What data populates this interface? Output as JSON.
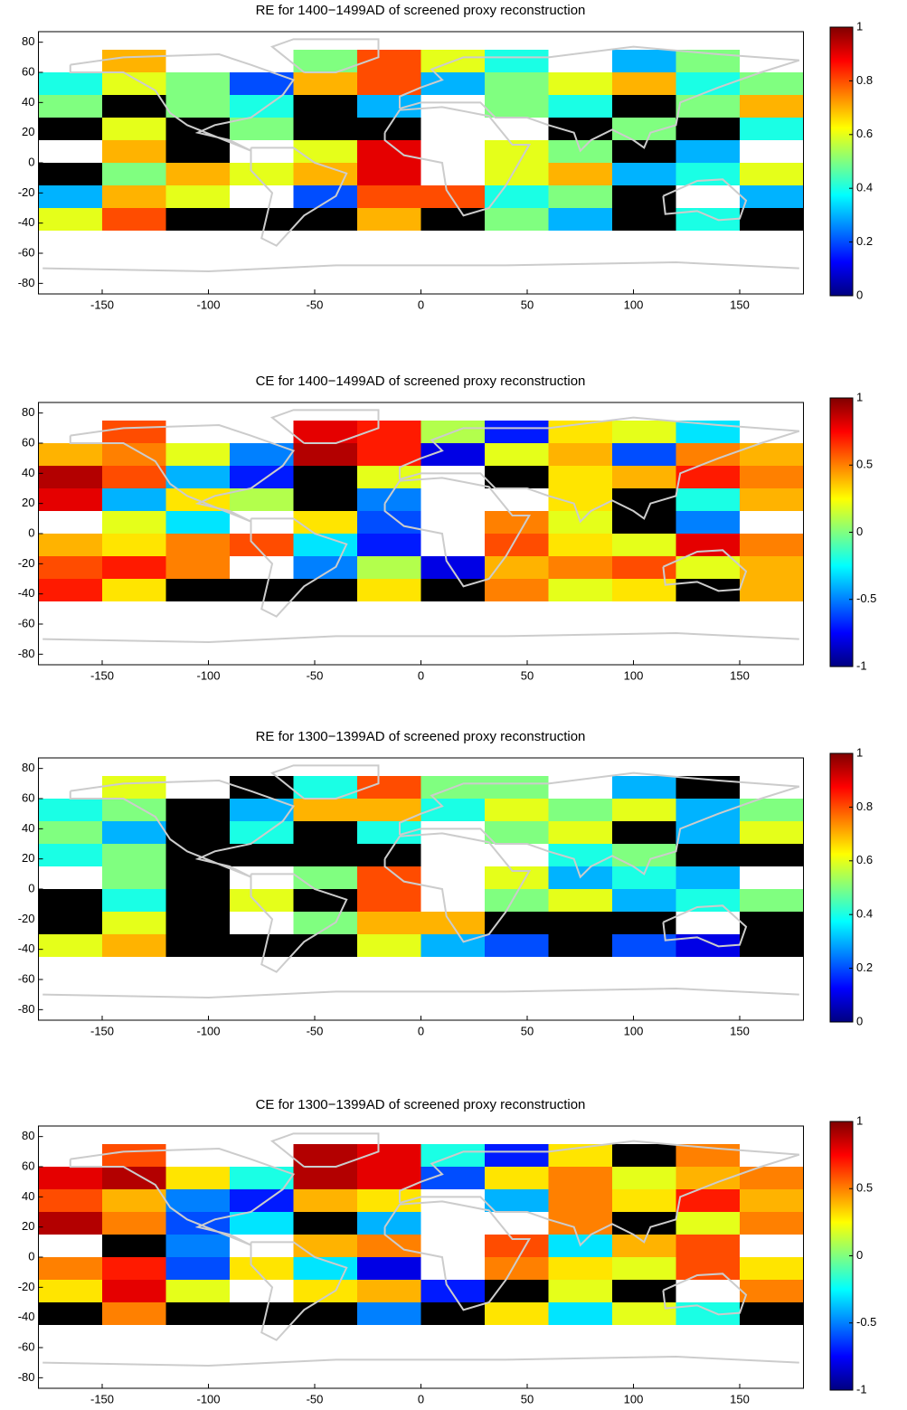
{
  "chart_data": [
    {
      "type": "heatmap",
      "title": "RE for 1400−1499AD of screened proxy reconstruction",
      "x": [
        -165,
        -135,
        -105,
        -75,
        -45,
        -15,
        15,
        45,
        75,
        105,
        135,
        165
      ],
      "y": [
        67.5,
        52.5,
        37.5,
        22.5,
        7.5,
        -7.5,
        -22.5,
        -37.5
      ],
      "values": [
        [
          null,
          0.7,
          null,
          null,
          0.5,
          0.8,
          0.6,
          0.4,
          null,
          0.3,
          0.5,
          null
        ],
        [
          0.4,
          0.6,
          0.5,
          0.2,
          0.7,
          0.8,
          0.3,
          0.5,
          0.6,
          0.7,
          0.4,
          0.5
        ],
        [
          0.5,
          -0.3,
          0.5,
          0.4,
          -0.3,
          0.3,
          null,
          0.5,
          0.4,
          -0.3,
          0.5,
          0.7
        ],
        [
          -0.3,
          0.6,
          -0.3,
          0.5,
          -0.3,
          -0.3,
          null,
          null,
          -0.3,
          0.5,
          -0.3,
          0.4
        ],
        [
          null,
          0.7,
          -0.3,
          null,
          0.6,
          0.9,
          null,
          0.6,
          0.5,
          -0.3,
          0.3,
          null
        ],
        [
          -0.3,
          0.5,
          0.7,
          0.6,
          0.7,
          0.9,
          null,
          0.6,
          0.7,
          0.3,
          0.4,
          0.6
        ],
        [
          0.3,
          0.7,
          0.6,
          null,
          0.2,
          0.8,
          0.8,
          0.4,
          0.5,
          -0.3,
          null,
          0.3
        ],
        [
          0.6,
          0.8,
          -0.3,
          -0.3,
          -0.3,
          0.7,
          -0.3,
          0.5,
          0.3,
          -0.3,
          0.4,
          -0.3
        ]
      ],
      "xlim": [
        -180,
        180
      ],
      "ylim": [
        -87,
        87
      ],
      "xticks": [
        -150,
        -100,
        -50,
        0,
        50,
        100,
        150
      ],
      "yticks": [
        -80,
        -60,
        -40,
        -20,
        0,
        20,
        40,
        60,
        80
      ],
      "clim": [
        0,
        1
      ],
      "cticks": [
        0,
        0.2,
        0.4,
        0.6,
        0.8,
        1
      ],
      "colormap": "jet",
      "under_color": "#000000"
    },
    {
      "type": "heatmap",
      "title": "CE for 1400−1499AD of screened proxy reconstruction",
      "x": [
        -165,
        -135,
        -105,
        -75,
        -45,
        -15,
        15,
        45,
        75,
        105,
        135,
        165
      ],
      "y": [
        67.5,
        52.5,
        37.5,
        22.5,
        7.5,
        -7.5,
        -22.5,
        -37.5
      ],
      "values": [
        [
          null,
          0.6,
          null,
          null,
          0.8,
          0.7,
          0.1,
          -0.7,
          0.3,
          0.2,
          -0.3,
          null
        ],
        [
          0.4,
          0.5,
          0.2,
          -0.5,
          0.9,
          0.7,
          -0.8,
          0.2,
          0.4,
          -0.6,
          0.5,
          0.4
        ],
        [
          0.9,
          0.6,
          -0.4,
          -0.7,
          -1.5,
          0.2,
          null,
          -1.5,
          0.3,
          0.4,
          0.7,
          0.5
        ],
        [
          0.8,
          -0.4,
          0.3,
          0.1,
          -1.5,
          -0.5,
          null,
          null,
          0.3,
          -1.5,
          -0.2,
          0.4
        ],
        [
          null,
          0.2,
          -0.3,
          null,
          0.3,
          -0.6,
          null,
          0.5,
          0.2,
          -1.5,
          -0.5,
          null
        ],
        [
          0.4,
          0.3,
          0.5,
          0.6,
          -0.3,
          -0.7,
          null,
          0.6,
          0.3,
          0.2,
          0.8,
          0.5
        ],
        [
          0.6,
          0.7,
          0.5,
          null,
          -0.5,
          0.1,
          -0.8,
          0.4,
          0.5,
          0.6,
          0.2,
          0.4
        ],
        [
          0.7,
          0.3,
          -1.5,
          -1.5,
          -1.5,
          0.3,
          -1.5,
          0.5,
          0.2,
          0.3,
          -1.5,
          0.4
        ]
      ],
      "xlim": [
        -180,
        180
      ],
      "ylim": [
        -87,
        87
      ],
      "xticks": [
        -150,
        -100,
        -50,
        0,
        50,
        100,
        150
      ],
      "yticks": [
        -80,
        -60,
        -40,
        -20,
        0,
        20,
        40,
        60,
        80
      ],
      "clim": [
        -1,
        1
      ],
      "cticks": [
        -1,
        -0.5,
        0,
        0.5,
        1
      ],
      "colormap": "jet",
      "under_color": "#000000"
    },
    {
      "type": "heatmap",
      "title": "RE for 1300−1399AD of screened proxy reconstruction",
      "x": [
        -165,
        -135,
        -105,
        -75,
        -45,
        -15,
        15,
        45,
        75,
        105,
        135,
        165
      ],
      "y": [
        67.5,
        52.5,
        37.5,
        22.5,
        7.5,
        -7.5,
        -22.5,
        -37.5
      ],
      "values": [
        [
          null,
          0.6,
          null,
          -0.3,
          0.4,
          0.8,
          0.5,
          0.5,
          null,
          0.3,
          -0.3,
          null
        ],
        [
          0.4,
          0.5,
          -0.3,
          0.3,
          0.7,
          0.7,
          0.4,
          0.6,
          0.5,
          0.6,
          0.3,
          0.5
        ],
        [
          0.5,
          0.3,
          -0.3,
          0.4,
          -0.3,
          0.4,
          null,
          0.5,
          0.6,
          -0.3,
          0.3,
          0.6
        ],
        [
          0.4,
          0.5,
          -0.3,
          -0.3,
          -0.3,
          -0.3,
          null,
          null,
          0.4,
          0.5,
          -0.3,
          -0.3
        ],
        [
          null,
          0.5,
          -0.3,
          null,
          0.5,
          0.8,
          null,
          0.6,
          0.3,
          0.4,
          0.3,
          null
        ],
        [
          -0.3,
          0.4,
          -0.3,
          0.6,
          -0.3,
          0.8,
          null,
          0.5,
          0.6,
          0.3,
          0.4,
          0.5
        ],
        [
          -0.3,
          0.6,
          -0.3,
          null,
          0.5,
          0.7,
          0.7,
          -0.3,
          -0.3,
          -0.3,
          null,
          -0.3
        ],
        [
          0.6,
          0.7,
          -0.3,
          -0.3,
          -0.3,
          0.6,
          0.3,
          0.2,
          -0.3,
          0.2,
          0.1,
          -0.3
        ]
      ],
      "xlim": [
        -180,
        180
      ],
      "ylim": [
        -87,
        87
      ],
      "xticks": [
        -150,
        -100,
        -50,
        0,
        50,
        100,
        150
      ],
      "yticks": [
        -80,
        -60,
        -40,
        -20,
        0,
        20,
        40,
        60,
        80
      ],
      "clim": [
        0,
        1
      ],
      "cticks": [
        0,
        0.2,
        0.4,
        0.6,
        0.8,
        1
      ],
      "colormap": "jet",
      "under_color": "#000000"
    },
    {
      "type": "heatmap",
      "title": "CE for 1300−1399AD of screened proxy reconstruction",
      "x": [
        -165,
        -135,
        -105,
        -75,
        -45,
        -15,
        15,
        45,
        75,
        105,
        135,
        165
      ],
      "y": [
        67.5,
        52.5,
        37.5,
        22.5,
        7.5,
        -7.5,
        -22.5,
        -37.5
      ],
      "values": [
        [
          null,
          0.6,
          null,
          null,
          0.9,
          0.8,
          -0.2,
          -0.7,
          0.3,
          -1.5,
          0.5,
          null
        ],
        [
          0.8,
          0.9,
          0.3,
          -0.2,
          0.9,
          0.8,
          -0.6,
          0.3,
          0.5,
          0.2,
          0.4,
          0.5
        ],
        [
          0.6,
          0.4,
          -0.5,
          -0.7,
          0.4,
          0.3,
          null,
          -0.4,
          0.5,
          0.3,
          0.7,
          0.4
        ],
        [
          0.9,
          0.5,
          -0.6,
          -0.3,
          -1.5,
          -0.4,
          null,
          null,
          0.5,
          -1.5,
          0.2,
          0.5
        ],
        [
          null,
          -1.5,
          -0.5,
          null,
          0.4,
          0.5,
          null,
          0.6,
          -0.3,
          0.4,
          0.6,
          null
        ],
        [
          0.5,
          0.7,
          -0.6,
          0.3,
          -0.3,
          -0.8,
          null,
          0.5,
          0.3,
          0.2,
          0.6,
          0.3
        ],
        [
          0.3,
          0.8,
          0.2,
          null,
          0.3,
          0.4,
          -0.7,
          -1.5,
          0.2,
          -1.5,
          null,
          0.5
        ],
        [
          -1.5,
          0.5,
          -1.5,
          -1.5,
          -1.5,
          -0.5,
          -1.5,
          0.3,
          -0.3,
          0.2,
          -0.2,
          -1.5
        ]
      ],
      "xlim": [
        -180,
        180
      ],
      "ylim": [
        -87,
        87
      ],
      "xticks": [
        -150,
        -100,
        -50,
        0,
        50,
        100,
        150
      ],
      "yticks": [
        -80,
        -60,
        -40,
        -20,
        0,
        20,
        40,
        60,
        80
      ],
      "clim": [
        -1,
        1
      ],
      "cticks": [
        -1,
        -0.5,
        0,
        0.5,
        1
      ],
      "colormap": "jet",
      "under_color": "#000000"
    }
  ]
}
